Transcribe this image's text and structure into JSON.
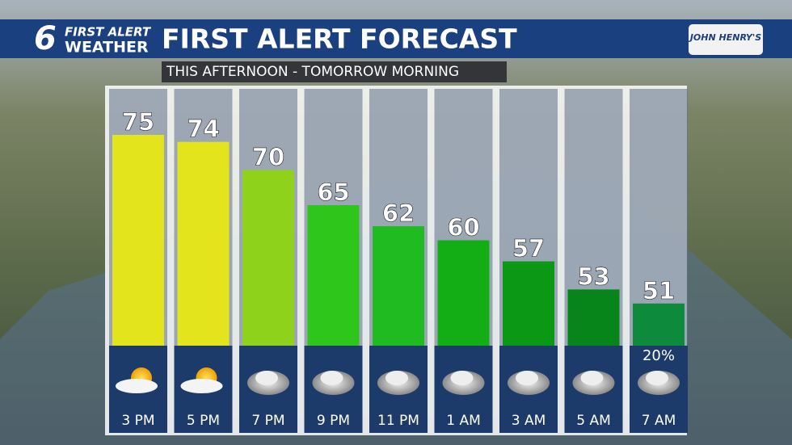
{
  "brand": {
    "number": "6",
    "line1": "FIRST ALERT",
    "line2": "WEATHER",
    "sponsor": "JOHN HENRY'S"
  },
  "chart_data": {
    "type": "bar",
    "title": "FIRST ALERT FORECAST",
    "subtitle": "THIS AFTERNOON - TOMORROW MORNING",
    "categories": [
      "3 PM",
      "5 PM",
      "7 PM",
      "9 PM",
      "11 PM",
      "1 AM",
      "3 AM",
      "5 AM",
      "7 AM"
    ],
    "values": [
      75,
      74,
      70,
      65,
      62,
      60,
      57,
      53,
      51
    ],
    "colors": [
      "#e4e41c",
      "#e4e41c",
      "#8ed21c",
      "#2fc61c",
      "#20bb20",
      "#13ad15",
      "#0a9815",
      "#07851a",
      "#0d8a3c"
    ],
    "icons": [
      "partly-sunny",
      "partly-sunny",
      "cloudy",
      "cloudy",
      "cloudy",
      "cloudy",
      "cloudy",
      "cloudy",
      "cloudy"
    ],
    "precip_values": [
      null,
      null,
      null,
      null,
      null,
      null,
      null,
      null,
      20
    ],
    "precip_labels": [
      null,
      null,
      null,
      null,
      null,
      null,
      null,
      null,
      "20%"
    ]
  }
}
